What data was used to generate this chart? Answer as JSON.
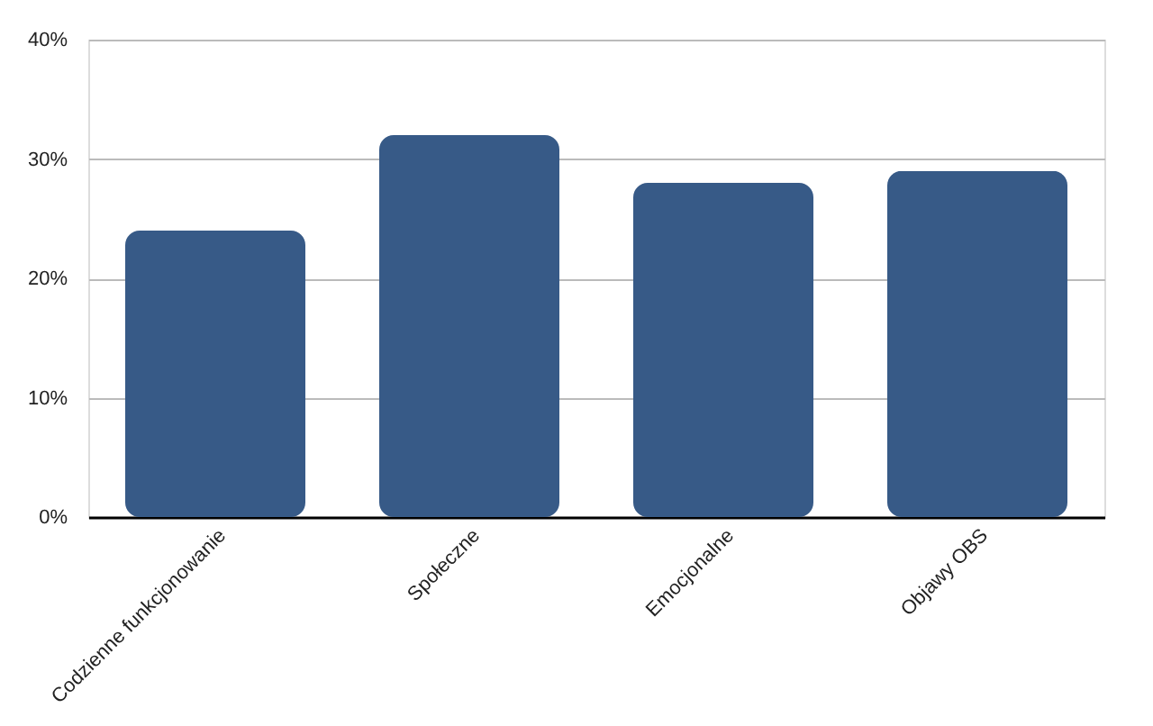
{
  "chart_data": {
    "type": "bar",
    "categories": [
      "Codzienne funkcjonowanie",
      "Społeczne",
      "Emocjonalne",
      "Objawy OBS"
    ],
    "values": [
      24,
      32,
      28,
      29
    ],
    "color": "#375a87",
    "ylim": [
      0,
      40
    ],
    "yticks": [
      {
        "value": 0,
        "label": "0%"
      },
      {
        "value": 10,
        "label": "10%"
      },
      {
        "value": 20,
        "label": "20%"
      },
      {
        "value": 30,
        "label": "30%"
      },
      {
        "value": 40,
        "label": "40%"
      }
    ],
    "grid": "y"
  }
}
